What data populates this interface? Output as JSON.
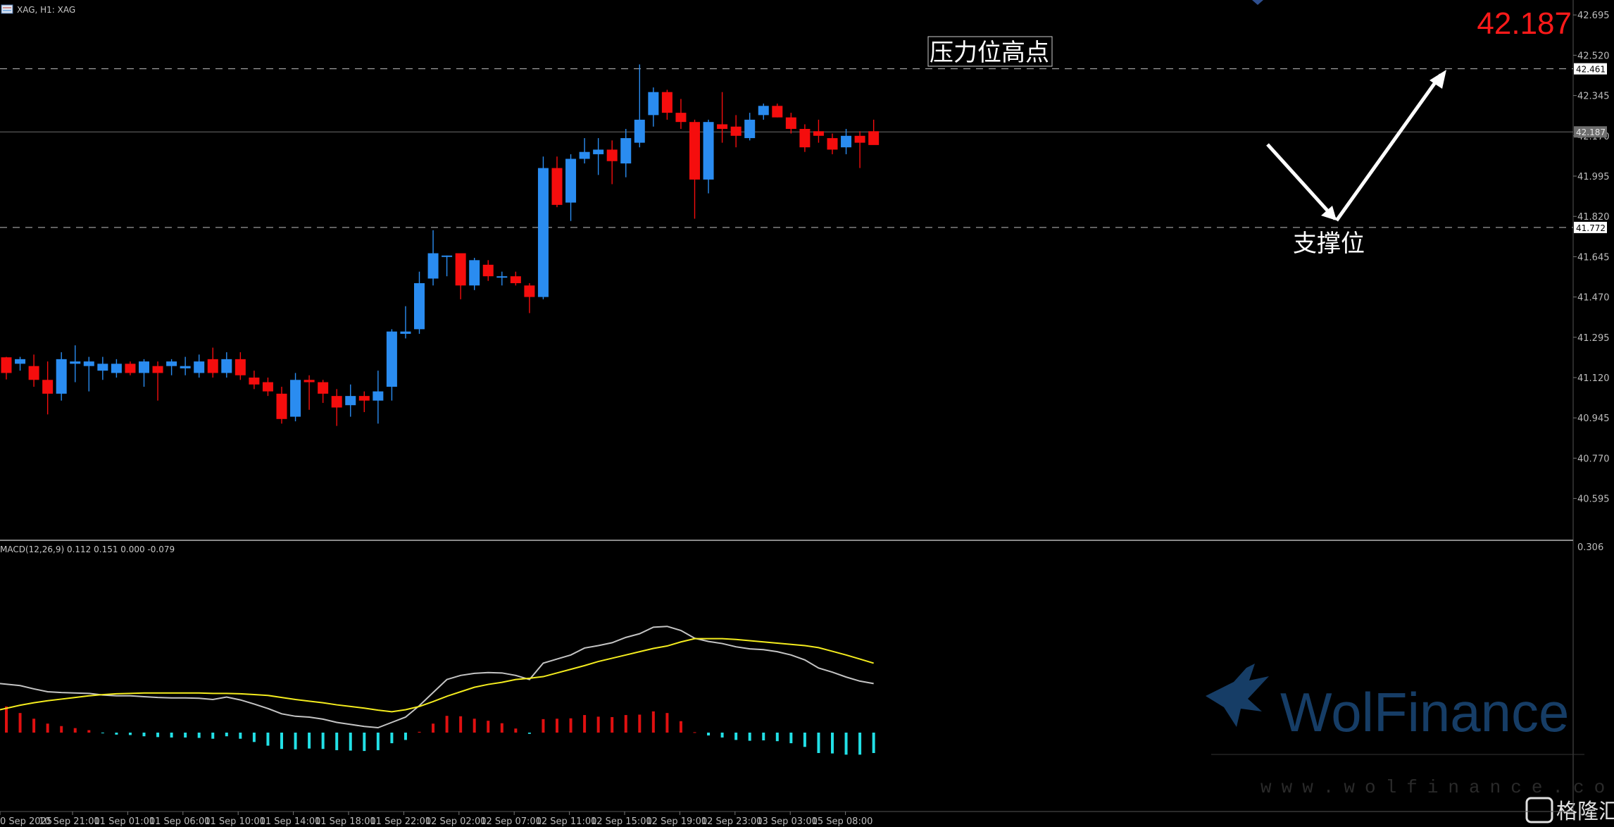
{
  "header": {
    "symbol": "XAG, H1:  XAG",
    "last_price": "42.187"
  },
  "colors": {
    "up": "#2a8cf0",
    "down": "#f50d0d",
    "macd_line": "#c4c4c4",
    "signal_line": "#f4ec1e",
    "hist_pos": "#e01010",
    "hist_neg": "#22e0e6"
  },
  "annotations": {
    "resistance": "压力位高点",
    "support": "支撑位"
  },
  "levels": {
    "resistance": 42.461,
    "support": 41.772,
    "current": 42.187
  },
  "price_axis": {
    "ticks": [
      "42.695",
      "42.520",
      "42.345",
      "42.170",
      "41.995",
      "41.820",
      "41.645",
      "41.470",
      "41.295",
      "41.120",
      "40.945",
      "40.770",
      "40.595"
    ],
    "labels": {
      "resistance": "42.461",
      "support": "41.772",
      "current": "42.187"
    }
  },
  "macd_panel": {
    "label": "MACD(12,26,9) 0.112 0.151 0.000 -0.079",
    "scale_label": "0.306"
  },
  "time_axis": [
    "0 Sep 2025",
    "10 Sep 21:00",
    "11 Sep 01:00",
    "11 Sep 06:00",
    "11 Sep 10:00",
    "11 Sep 14:00",
    "11 Sep 18:00",
    "11 Sep 22:00",
    "12 Sep 02:00",
    "12 Sep 07:00",
    "12 Sep 11:00",
    "12 Sep 15:00",
    "12 Sep 19:00",
    "12 Sep 23:00",
    "13 Sep 03:00",
    "15 Sep 08:00"
  ],
  "watermark": {
    "brand": "WolFinance",
    "url": "www.wolfinance.com",
    "corner": "格隆汇"
  },
  "chart_data": {
    "type": "candlestick",
    "series": [
      {
        "name": "XAG H1",
        "ohlc": [
          [
            41.208,
            41.21,
            41.112,
            41.14
          ],
          [
            41.18,
            41.21,
            41.15,
            41.2
          ],
          [
            41.17,
            41.22,
            41.08,
            41.11
          ],
          [
            41.11,
            41.19,
            40.96,
            41.05
          ],
          [
            41.05,
            41.23,
            41.02,
            41.2
          ],
          [
            41.18,
            41.26,
            41.1,
            41.19
          ],
          [
            41.17,
            41.21,
            41.06,
            41.19
          ],
          [
            41.15,
            41.21,
            41.11,
            41.18
          ],
          [
            41.14,
            41.2,
            41.12,
            41.18
          ],
          [
            41.18,
            41.19,
            41.13,
            41.14
          ],
          [
            41.14,
            41.2,
            41.08,
            41.19
          ],
          [
            41.17,
            41.19,
            41.02,
            41.14
          ],
          [
            41.17,
            41.2,
            41.13,
            41.19
          ],
          [
            41.16,
            41.21,
            41.13,
            41.17
          ],
          [
            41.14,
            41.22,
            41.12,
            41.19
          ],
          [
            41.2,
            41.25,
            41.12,
            41.14
          ],
          [
            41.14,
            41.23,
            41.12,
            41.2
          ],
          [
            41.2,
            41.23,
            41.11,
            41.13
          ],
          [
            41.12,
            41.15,
            41.07,
            41.09
          ],
          [
            41.1,
            41.12,
            41.04,
            41.06
          ],
          [
            41.05,
            41.08,
            40.92,
            40.94
          ],
          [
            40.95,
            41.14,
            40.93,
            41.11
          ],
          [
            41.11,
            41.13,
            40.98,
            41.1
          ],
          [
            41.1,
            41.11,
            41.01,
            41.05
          ],
          [
            41.04,
            41.07,
            40.91,
            40.99
          ],
          [
            41.0,
            41.09,
            40.95,
            41.04
          ],
          [
            41.04,
            41.06,
            40.97,
            41.02
          ],
          [
            41.02,
            41.15,
            40.92,
            41.06
          ],
          [
            41.08,
            41.33,
            41.02,
            41.32
          ],
          [
            41.31,
            41.43,
            41.29,
            41.32
          ],
          [
            41.33,
            41.58,
            41.31,
            41.53
          ],
          [
            41.55,
            41.76,
            41.52,
            41.66
          ],
          [
            41.65,
            41.65,
            41.56,
            41.65
          ],
          [
            41.66,
            41.66,
            41.46,
            41.52
          ],
          [
            41.52,
            41.64,
            41.5,
            41.63
          ],
          [
            41.61,
            41.63,
            41.54,
            41.56
          ],
          [
            41.56,
            41.58,
            41.52,
            41.56
          ],
          [
            41.56,
            41.58,
            41.52,
            41.53
          ],
          [
            41.52,
            41.53,
            41.4,
            41.47
          ],
          [
            41.47,
            42.08,
            41.46,
            42.03
          ],
          [
            42.03,
            42.08,
            41.86,
            41.87
          ],
          [
            41.88,
            42.09,
            41.8,
            42.07
          ],
          [
            42.07,
            42.16,
            42.05,
            42.1
          ],
          [
            42.09,
            42.16,
            42.0,
            42.11
          ],
          [
            42.11,
            42.15,
            41.96,
            42.06
          ],
          [
            42.05,
            42.2,
            41.99,
            42.16
          ],
          [
            42.14,
            42.48,
            42.12,
            42.24
          ],
          [
            42.26,
            42.38,
            42.21,
            42.36
          ],
          [
            42.36,
            42.37,
            42.24,
            42.27
          ],
          [
            42.27,
            42.33,
            42.2,
            42.23
          ],
          [
            42.23,
            42.24,
            41.81,
            41.98
          ],
          [
            41.98,
            42.24,
            41.92,
            42.23
          ],
          [
            42.22,
            42.36,
            42.14,
            42.2
          ],
          [
            42.21,
            42.26,
            42.12,
            42.17
          ],
          [
            42.16,
            42.27,
            42.15,
            42.24
          ],
          [
            42.26,
            42.31,
            42.24,
            42.3
          ],
          [
            42.3,
            42.31,
            42.25,
            42.25
          ],
          [
            42.25,
            42.27,
            42.18,
            42.2
          ],
          [
            42.2,
            42.22,
            42.1,
            42.12
          ],
          [
            42.19,
            42.24,
            42.14,
            42.17
          ],
          [
            42.16,
            42.18,
            42.09,
            42.11
          ],
          [
            42.12,
            42.2,
            42.09,
            42.17
          ],
          [
            42.17,
            42.19,
            42.03,
            42.14
          ],
          [
            42.19,
            42.24,
            42.14,
            42.13
          ]
        ]
      },
      {
        "name": "MACD",
        "values": [
          0.12,
          0.115,
          0.107,
          0.1,
          0.098,
          0.097,
          0.096,
          0.092,
          0.09,
          0.09,
          0.088,
          0.086,
          0.085,
          0.085,
          0.084,
          0.081,
          0.087,
          0.08,
          0.07,
          0.059,
          0.046,
          0.04,
          0.038,
          0.033,
          0.025,
          0.02,
          0.015,
          0.012,
          0.025,
          0.038,
          0.066,
          0.098,
          0.13,
          0.14,
          0.145,
          0.147,
          0.146,
          0.14,
          0.13,
          0.17,
          0.18,
          0.19,
          0.207,
          0.213,
          0.22,
          0.233,
          0.242,
          0.258,
          0.26,
          0.25,
          0.231,
          0.223,
          0.218,
          0.21,
          0.205,
          0.203,
          0.198,
          0.19,
          0.178,
          0.158,
          0.148,
          0.136,
          0.126,
          0.12
        ]
      },
      {
        "name": "Signal",
        "values": [
          0.056,
          0.067,
          0.073,
          0.078,
          0.082,
          0.086,
          0.09,
          0.093,
          0.095,
          0.096,
          0.097,
          0.097,
          0.097,
          0.097,
          0.097,
          0.096,
          0.096,
          0.095,
          0.093,
          0.091,
          0.086,
          0.081,
          0.077,
          0.073,
          0.068,
          0.064,
          0.06,
          0.055,
          0.051,
          0.056,
          0.064,
          0.076,
          0.089,
          0.1,
          0.111,
          0.118,
          0.123,
          0.13,
          0.133,
          0.137,
          0.146,
          0.155,
          0.164,
          0.174,
          0.182,
          0.19,
          0.198,
          0.206,
          0.212,
          0.222,
          0.23,
          0.23,
          0.23,
          0.228,
          0.225,
          0.222,
          0.219,
          0.216,
          0.213,
          0.208,
          0.199,
          0.19,
          0.18,
          0.17
        ]
      },
      {
        "name": "Histogram",
        "values": [
          0.064,
          0.048,
          0.034,
          0.022,
          0.016,
          0.011,
          0.006,
          -0.001,
          -0.005,
          -0.006,
          -0.009,
          -0.011,
          -0.012,
          -0.012,
          -0.013,
          -0.015,
          -0.009,
          -0.015,
          -0.023,
          -0.032,
          -0.04,
          -0.041,
          -0.039,
          -0.04,
          -0.043,
          -0.044,
          -0.045,
          -0.043,
          -0.026,
          -0.018,
          0.002,
          0.022,
          0.041,
          0.04,
          0.034,
          0.029,
          0.023,
          0.01,
          -0.003,
          0.033,
          0.034,
          0.035,
          0.043,
          0.039,
          0.038,
          0.043,
          0.044,
          0.052,
          0.048,
          0.028,
          0.001,
          -0.007,
          -0.012,
          -0.018,
          -0.02,
          -0.019,
          -0.021,
          -0.026,
          -0.035,
          -0.05,
          -0.051,
          -0.054,
          -0.054,
          -0.05
        ]
      }
    ],
    "ylim": [
      40.45,
      42.78
    ],
    "hline_values": [
      42.461,
      41.772,
      42.187
    ],
    "macd_ylim": [
      -0.09,
      0.306
    ],
    "grid": false,
    "legend": "none"
  }
}
